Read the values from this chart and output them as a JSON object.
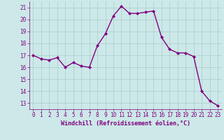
{
  "x": [
    0,
    1,
    2,
    3,
    4,
    5,
    6,
    7,
    8,
    9,
    10,
    11,
    12,
    13,
    14,
    15,
    16,
    17,
    18,
    19,
    20,
    21,
    22,
    23
  ],
  "y": [
    17.0,
    16.7,
    16.6,
    16.8,
    16.0,
    16.4,
    16.1,
    16.0,
    17.8,
    18.8,
    20.3,
    21.1,
    20.5,
    20.5,
    20.6,
    20.7,
    18.5,
    17.5,
    17.2,
    17.2,
    16.9,
    14.0,
    13.2,
    12.8
  ],
  "line_color": "#800080",
  "marker": "D",
  "marker_size": 2.0,
  "bg_color": "#cce8e8",
  "grid_color": "#aacccc",
  "xlabel": "Windchill (Refroidissement éolien,°C)",
  "xlabel_color": "#800080",
  "tick_color": "#800080",
  "axis_color": "#800080",
  "ylim": [
    12.5,
    21.5
  ],
  "xlim": [
    -0.5,
    23.5
  ],
  "yticks": [
    13,
    14,
    15,
    16,
    17,
    18,
    19,
    20,
    21
  ],
  "xticks": [
    0,
    1,
    2,
    3,
    4,
    5,
    6,
    7,
    8,
    9,
    10,
    11,
    12,
    13,
    14,
    15,
    16,
    17,
    18,
    19,
    20,
    21,
    22,
    23
  ],
  "line_width": 1.0,
  "tick_fontsize": 5.5,
  "xlabel_fontsize": 6.0
}
